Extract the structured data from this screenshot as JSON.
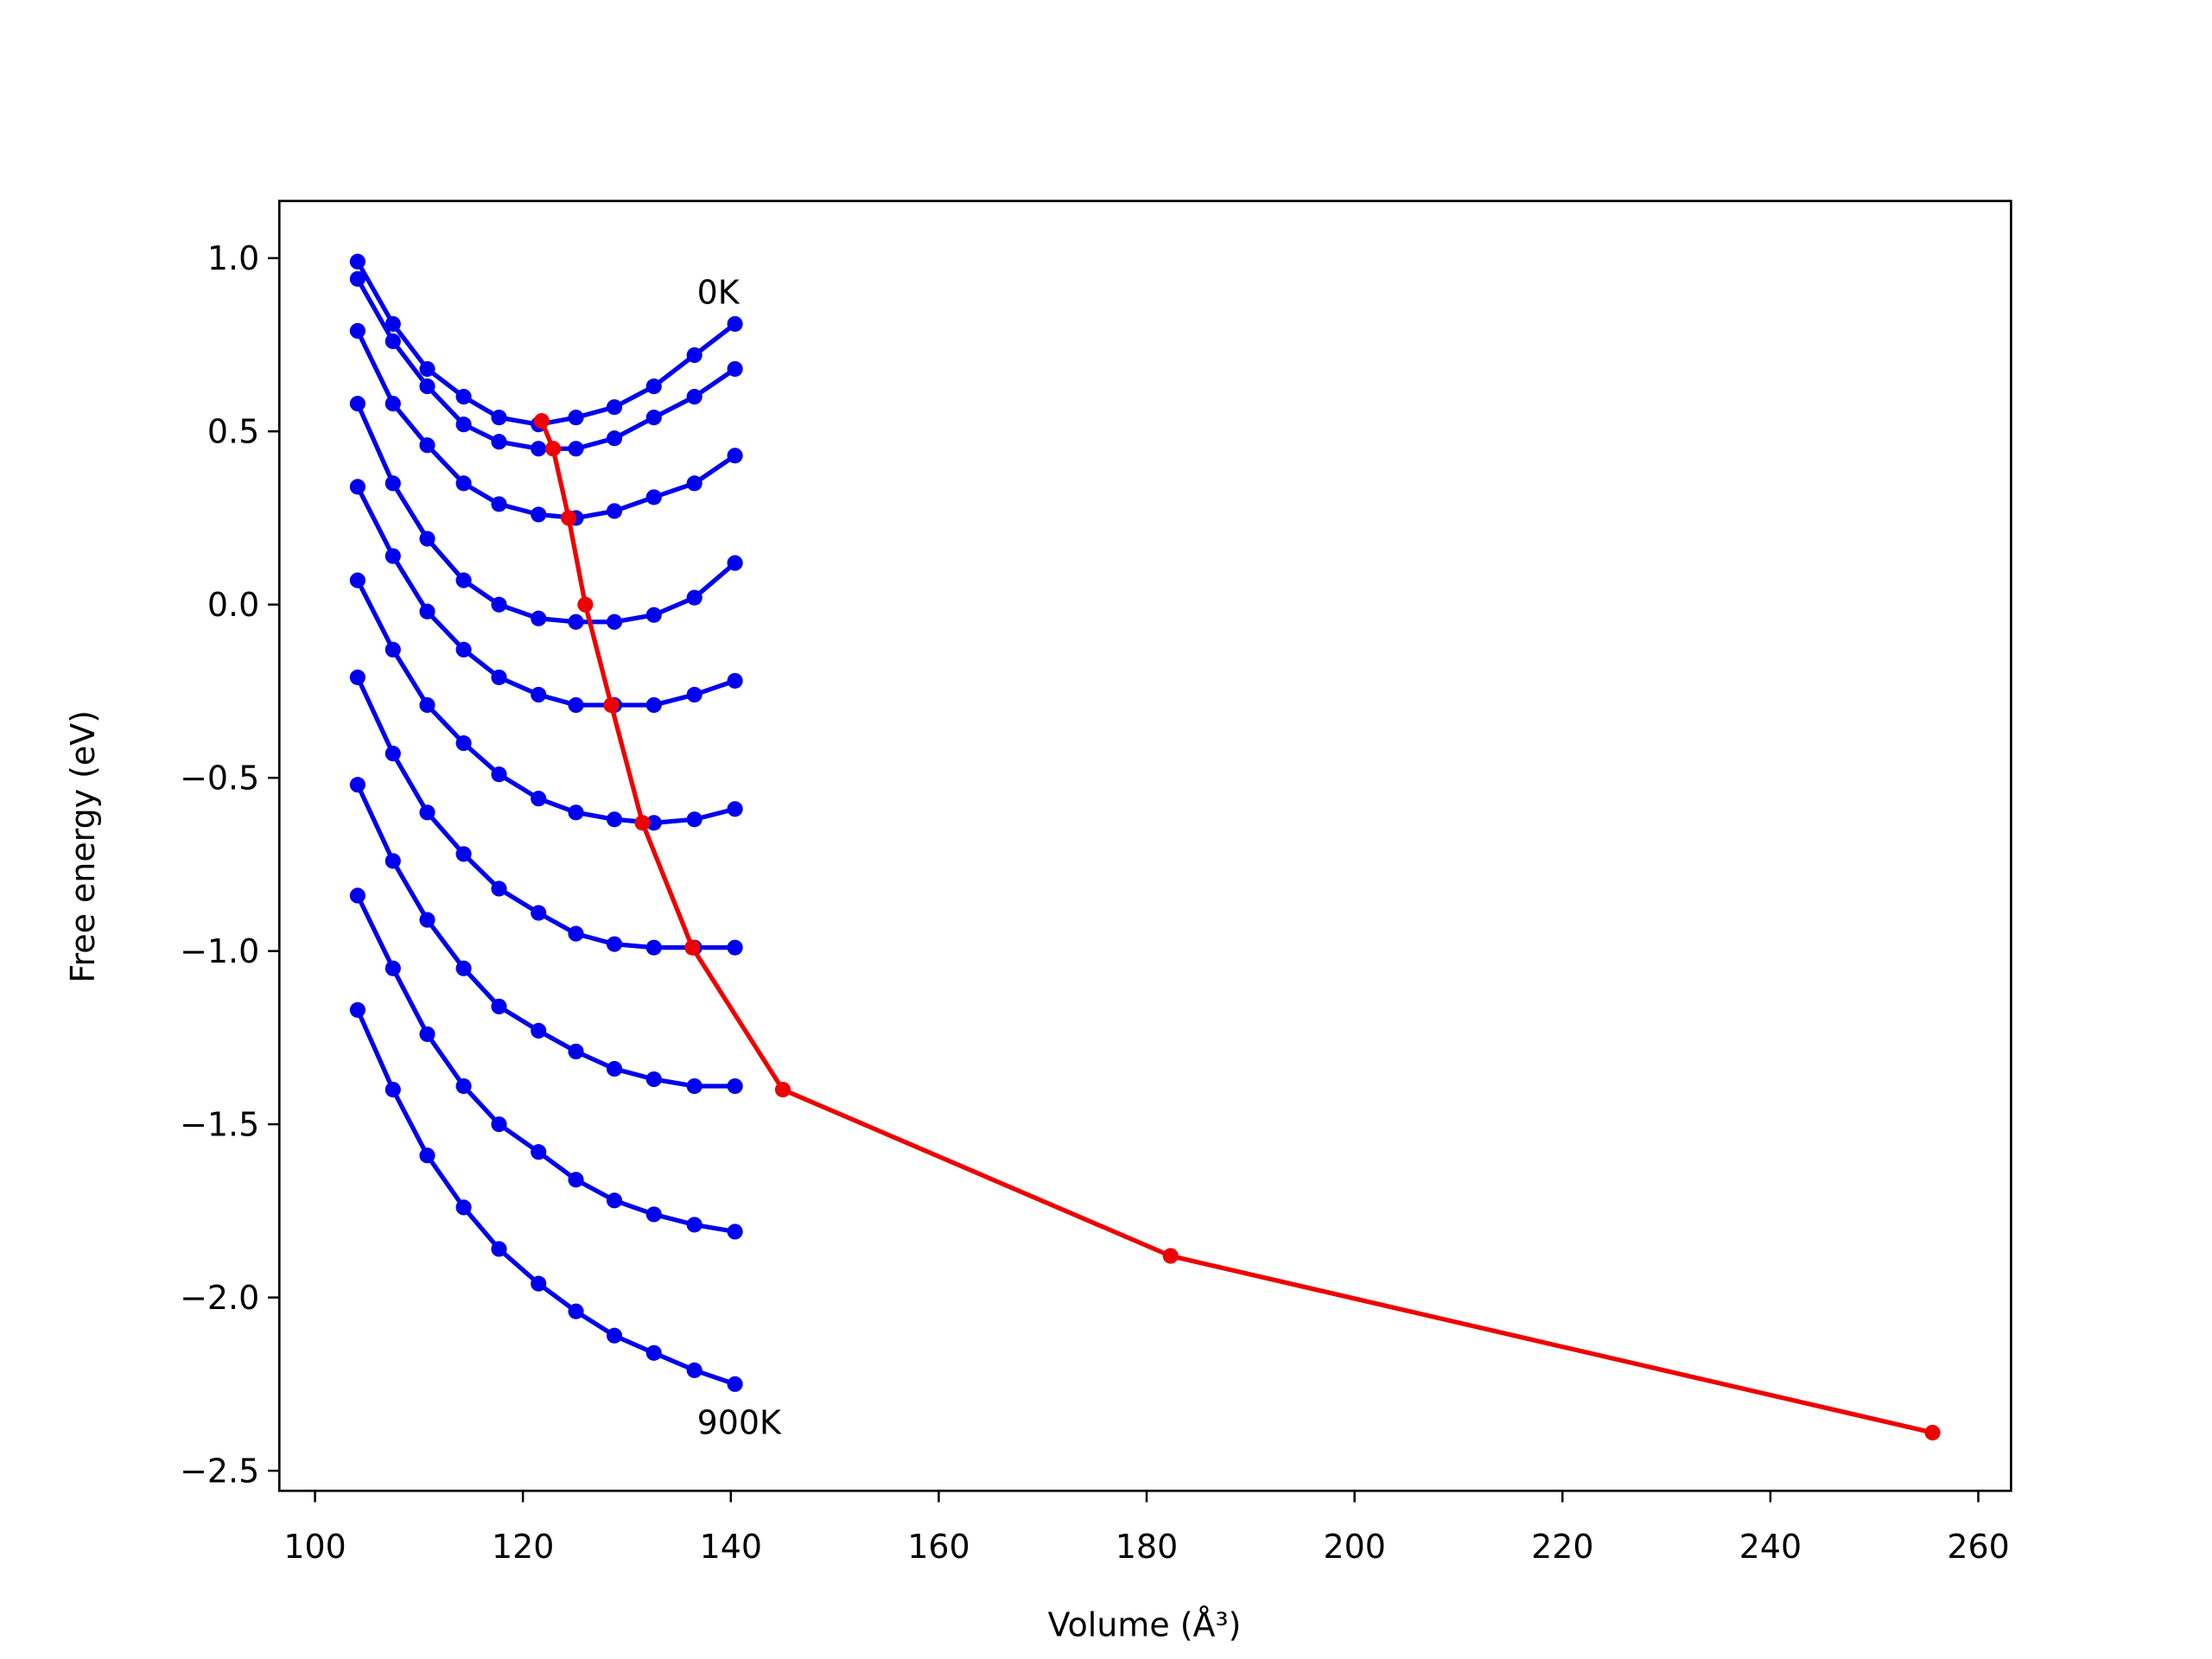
{
  "chart_data": {
    "type": "line",
    "xlabel": "Volume (Å³)",
    "ylabel": "Free energy (eV)",
    "annotations": [
      "0K",
      "900K"
    ],
    "x": [
      104.1,
      107.5,
      110.8,
      114.3,
      117.7,
      121.5,
      125.1,
      128.8,
      132.6,
      136.5,
      140.4
    ],
    "series": [
      {
        "color": "#0000ee",
        "values": [
          0.99,
          0.81,
          0.68,
          0.6,
          0.54,
          0.52,
          0.54,
          0.57,
          0.63,
          0.72,
          0.81
        ]
      },
      {
        "color": "#0000ee",
        "values": [
          0.94,
          0.76,
          0.63,
          0.52,
          0.47,
          0.45,
          0.45,
          0.48,
          0.54,
          0.6,
          0.68
        ]
      },
      {
        "color": "#0000ee",
        "values": [
          0.79,
          0.58,
          0.46,
          0.35,
          0.29,
          0.26,
          0.25,
          0.27,
          0.31,
          0.35,
          0.43
        ]
      },
      {
        "color": "#0000ee",
        "values": [
          0.58,
          0.35,
          0.19,
          0.07,
          0.0,
          -0.04,
          -0.05,
          -0.05,
          -0.03,
          0.02,
          0.12
        ]
      },
      {
        "color": "#0000ee",
        "values": [
          0.34,
          0.14,
          -0.02,
          -0.13,
          -0.21,
          -0.26,
          -0.29,
          -0.29,
          -0.29,
          -0.26,
          -0.22
        ]
      },
      {
        "color": "#0000ee",
        "values": [
          0.07,
          -0.13,
          -0.29,
          -0.4,
          -0.49,
          -0.56,
          -0.6,
          -0.62,
          -0.63,
          -0.62,
          -0.59
        ]
      },
      {
        "color": "#0000ee",
        "values": [
          -0.21,
          -0.43,
          -0.6,
          -0.72,
          -0.82,
          -0.89,
          -0.95,
          -0.98,
          -0.99,
          -0.99,
          -0.99
        ]
      },
      {
        "color": "#0000ee",
        "values": [
          -0.52,
          -0.74,
          -0.91,
          -1.05,
          -1.16,
          -1.23,
          -1.29,
          -1.34,
          -1.37,
          -1.39,
          -1.39
        ]
      },
      {
        "color": "#0000ee",
        "values": [
          -0.84,
          -1.05,
          -1.24,
          -1.39,
          -1.5,
          -1.58,
          -1.66,
          -1.72,
          -1.76,
          -1.79,
          -1.81
        ]
      },
      {
        "color": "#0000ee",
        "values": [
          -1.17,
          -1.4,
          -1.59,
          -1.74,
          -1.86,
          -1.96,
          -2.04,
          -2.11,
          -2.16,
          -2.21,
          -2.25
        ]
      },
      {
        "color": "#ee0000",
        "x": [
          121.8,
          122.9,
          124.4,
          126.0,
          128.5,
          131.5,
          136.3,
          145.0,
          182.3,
          255.6
        ],
        "values": [
          0.53,
          0.45,
          0.25,
          0.0,
          -0.29,
          -0.63,
          -0.99,
          -1.4,
          -1.88,
          -2.39
        ]
      }
    ],
    "xlim": [
      96.57,
      263.15
    ],
    "ylim": [
      -2.558,
      1.165
    ],
    "xticks": [
      100,
      120,
      140,
      160,
      180,
      200,
      220,
      240,
      260
    ],
    "yticks": [
      {
        "value": -2.5,
        "label": "−2.5"
      },
      {
        "value": -2.0,
        "label": "−2.0"
      },
      {
        "value": -1.5,
        "label": "−1.5"
      },
      {
        "value": -1.0,
        "label": "−1.0"
      },
      {
        "value": -0.5,
        "label": "−0.5"
      },
      {
        "value": 0.0,
        "label": "0.0"
      },
      0.5,
      {
        "value": 1.0,
        "label": "1.0"
      }
    ],
    "grid": false
  }
}
